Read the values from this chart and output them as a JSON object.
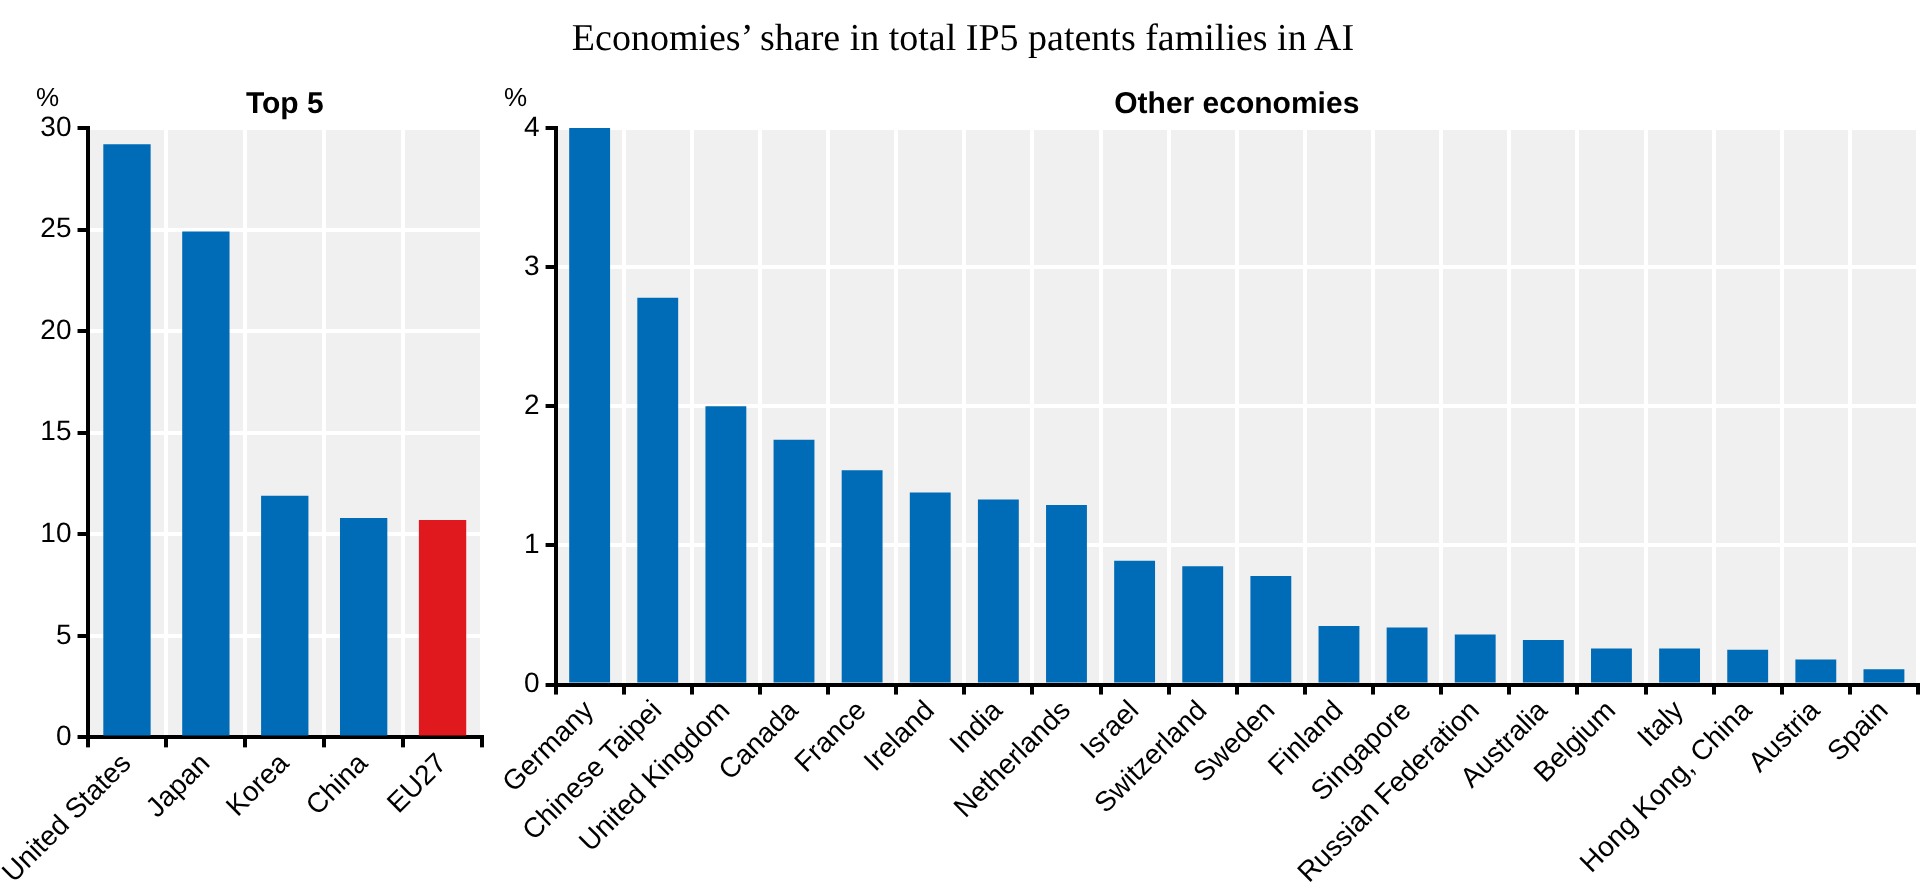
{
  "chart_data": [
    {
      "type": "bar",
      "title": "Top 5",
      "ylabel": "%",
      "annotations": [
        "Economies’ share in total IP5 patents families in AI"
      ],
      "categories": [
        "United States",
        "Japan",
        "Korea",
        "China",
        "EU27"
      ],
      "values": [
        29.2,
        24.9,
        11.9,
        10.8,
        10.7
      ],
      "colors": [
        "#006bb6",
        "#006bb6",
        "#006bb6",
        "#006bb6",
        "#e0191f"
      ],
      "ylim": [
        0,
        30
      ],
      "yticks": [
        0,
        5,
        10,
        15,
        20,
        25,
        30
      ],
      "grid": true
    },
    {
      "type": "bar",
      "title": "Other economies",
      "ylabel": "%",
      "categories": [
        "Germany",
        "Chinese Taipei",
        "United Kingdom",
        "Canada",
        "France",
        "Ireland",
        "India",
        "Netherlands",
        "Israel",
        "Switzerland",
        "Sweden",
        "Finland",
        "Singapore",
        "Russian Federation",
        "Australia",
        "Belgium",
        "Italy",
        "Hong Kong, China",
        "Austria",
        "Spain"
      ],
      "values": [
        4.0,
        2.78,
        2.0,
        1.76,
        1.54,
        1.38,
        1.33,
        1.29,
        0.89,
        0.85,
        0.78,
        0.42,
        0.41,
        0.36,
        0.32,
        0.26,
        0.26,
        0.25,
        0.18,
        0.11
      ],
      "color": "#006bb6",
      "ylim": [
        0,
        4
      ],
      "yticks": [
        0,
        1,
        2,
        3,
        4
      ],
      "grid": true
    }
  ]
}
